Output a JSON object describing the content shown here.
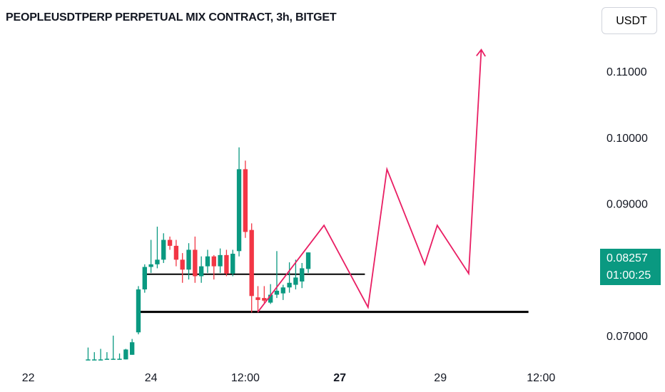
{
  "header": {
    "title": "PEOPLEUSDTPERP PERPETUAL MIX CONTRACT, 3h, BITGET",
    "currency_label": "USDT"
  },
  "price_badge": {
    "price": "0.08257",
    "countdown": "01:00:25",
    "color": "#0a9981"
  },
  "colors": {
    "up": "#0a9981",
    "down": "#f23645",
    "projection": "#e91e63",
    "level_line": "#000000"
  },
  "chart_data": {
    "type": "candlestick",
    "title": "PEOPLEUSDTPERP PERPETUAL MIX CONTRACT, 3h, BITGET",
    "y_ticks": [
      "0.11000",
      "0.10000",
      "0.09000",
      "0.07000"
    ],
    "y_tick_values": [
      0.11,
      0.1,
      0.09,
      0.07
    ],
    "ylim": [
      0.066,
      0.1165
    ],
    "x_labels": [
      "22",
      "24",
      "12:00",
      "27",
      "29",
      "12:00"
    ],
    "x_label_bold": [
      false,
      false,
      false,
      true,
      false,
      false
    ],
    "x_label_index": [
      -17.5,
      2,
      17,
      32,
      48,
      64
    ],
    "xlim": [
      -22,
      71
    ],
    "candles": [
      {
        "i": -8,
        "o": 0.0663,
        "h": 0.0682,
        "l": 0.0663,
        "c": 0.0664
      },
      {
        "i": -7,
        "o": 0.0663,
        "h": 0.0675,
        "l": 0.0663,
        "c": 0.0664
      },
      {
        "i": -6,
        "o": 0.0663,
        "h": 0.068,
        "l": 0.0663,
        "c": 0.0664
      },
      {
        "i": -5,
        "o": 0.0664,
        "h": 0.0675,
        "l": 0.0664,
        "c": 0.0665
      },
      {
        "i": -4,
        "o": 0.0664,
        "h": 0.07,
        "l": 0.0664,
        "c": 0.0665
      },
      {
        "i": -3,
        "o": 0.0664,
        "h": 0.0673,
        "l": 0.0664,
        "c": 0.0665
      },
      {
        "i": -2,
        "o": 0.0664,
        "h": 0.068,
        "l": 0.0664,
        "c": 0.0679
      },
      {
        "i": -1,
        "o": 0.0671,
        "h": 0.0695,
        "l": 0.0671,
        "c": 0.069
      },
      {
        "i": 0,
        "o": 0.0705,
        "h": 0.0775,
        "l": 0.0702,
        "c": 0.077
      },
      {
        "i": 1,
        "o": 0.077,
        "h": 0.0808,
        "l": 0.0765,
        "c": 0.0804
      },
      {
        "i": 2,
        "o": 0.0804,
        "h": 0.0845,
        "l": 0.0795,
        "c": 0.0808
      },
      {
        "i": 3,
        "o": 0.0808,
        "h": 0.0865,
        "l": 0.0802,
        "c": 0.0815
      },
      {
        "i": 4,
        "o": 0.0815,
        "h": 0.0855,
        "l": 0.081,
        "c": 0.0845
      },
      {
        "i": 5,
        "o": 0.0845,
        "h": 0.085,
        "l": 0.083,
        "c": 0.0836
      },
      {
        "i": 6,
        "o": 0.0836,
        "h": 0.0845,
        "l": 0.0805,
        "c": 0.0815
      },
      {
        "i": 7,
        "o": 0.0815,
        "h": 0.0825,
        "l": 0.078,
        "c": 0.08
      },
      {
        "i": 8,
        "o": 0.08,
        "h": 0.084,
        "l": 0.0785,
        "c": 0.083
      },
      {
        "i": 9,
        "o": 0.083,
        "h": 0.085,
        "l": 0.078,
        "c": 0.079
      },
      {
        "i": 10,
        "o": 0.079,
        "h": 0.082,
        "l": 0.078,
        "c": 0.0805
      },
      {
        "i": 11,
        "o": 0.0805,
        "h": 0.083,
        "l": 0.0795,
        "c": 0.082
      },
      {
        "i": 12,
        "o": 0.082,
        "h": 0.0822,
        "l": 0.0785,
        "c": 0.0805
      },
      {
        "i": 13,
        "o": 0.0805,
        "h": 0.0832,
        "l": 0.0795,
        "c": 0.0822
      },
      {
        "i": 14,
        "o": 0.0822,
        "h": 0.083,
        "l": 0.079,
        "c": 0.0794
      },
      {
        "i": 15,
        "o": 0.0794,
        "h": 0.083,
        "l": 0.079,
        "c": 0.0824
      },
      {
        "i": 16,
        "o": 0.0828,
        "h": 0.0985,
        "l": 0.082,
        "c": 0.0952
      },
      {
        "i": 17,
        "o": 0.0952,
        "h": 0.0965,
        "l": 0.0848,
        "c": 0.0857
      },
      {
        "i": 18,
        "o": 0.086,
        "h": 0.087,
        "l": 0.0735,
        "c": 0.076
      },
      {
        "i": 19,
        "o": 0.0758,
        "h": 0.0775,
        "l": 0.0735,
        "c": 0.0754
      },
      {
        "i": 20,
        "o": 0.0757,
        "h": 0.0775,
        "l": 0.075,
        "c": 0.0753
      },
      {
        "i": 21,
        "o": 0.075,
        "h": 0.0778,
        "l": 0.0748,
        "c": 0.0762
      },
      {
        "i": 22,
        "o": 0.0762,
        "h": 0.0828,
        "l": 0.0757,
        "c": 0.0768
      },
      {
        "i": 23,
        "o": 0.0764,
        "h": 0.0777,
        "l": 0.0754,
        "c": 0.0773
      },
      {
        "i": 24,
        "o": 0.0773,
        "h": 0.0811,
        "l": 0.0765,
        "c": 0.078
      },
      {
        "i": 25,
        "o": 0.0777,
        "h": 0.0815,
        "l": 0.077,
        "c": 0.0788
      },
      {
        "i": 26,
        "o": 0.0782,
        "h": 0.081,
        "l": 0.0772,
        "c": 0.0802
      },
      {
        "i": 27,
        "o": 0.0801,
        "h": 0.0826,
        "l": 0.0795,
        "c": 0.0826
      }
    ],
    "levels": [
      {
        "price": 0.0793,
        "from": 1,
        "to": 36
      },
      {
        "price": 0.0736,
        "from": 0,
        "to": 62
      }
    ],
    "projection": [
      [
        19,
        0.0736
      ],
      [
        29.5,
        0.0867
      ],
      [
        36.5,
        0.0743
      ],
      [
        39.5,
        0.0952
      ],
      [
        45.5,
        0.0808
      ],
      [
        47.5,
        0.0867
      ],
      [
        52.5,
        0.0794
      ],
      [
        54.5,
        0.1133
      ]
    ]
  }
}
